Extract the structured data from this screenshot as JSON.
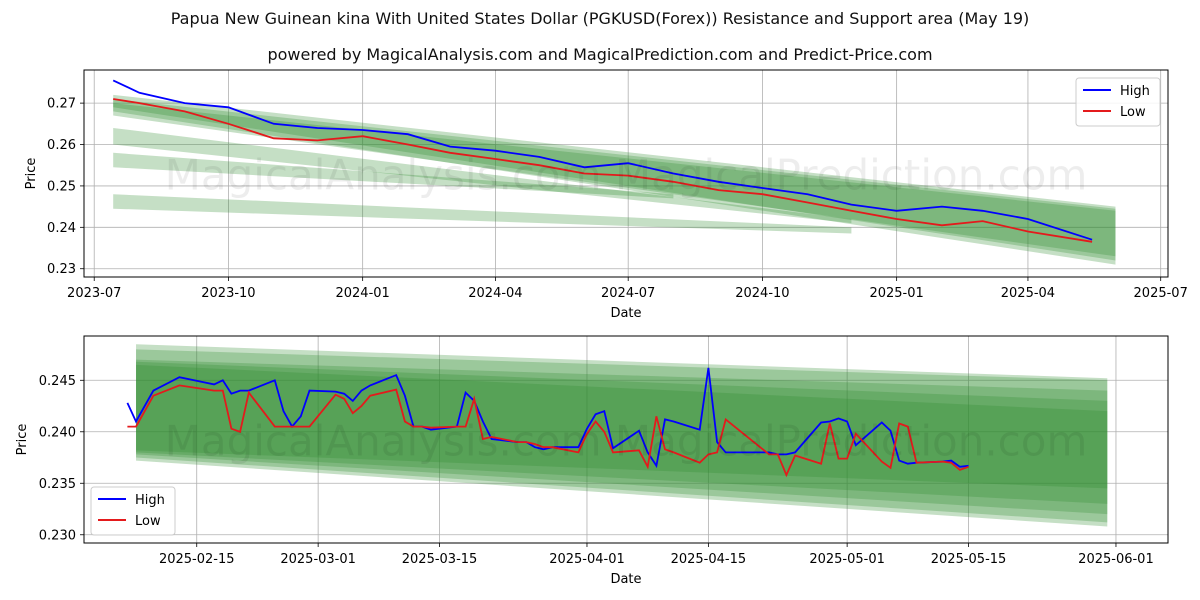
{
  "page": {
    "title": "Papua New Guinean kina With United States Dollar (PGKUSD(Forex)) Resistance and Support area (May 19)",
    "subtitle": "powered by MagicalAnalysis.com and MagicalPrediction.com and Predict-Price.com",
    "watermark": "MagicalAnalysis.com    MagicalPrediction.com"
  },
  "colors": {
    "high": "#0000ff",
    "low": "#e41a1c",
    "band": "#2e8b2e"
  },
  "chart_data": [
    {
      "type": "line",
      "xlabel": "Date",
      "ylabel": "Price",
      "ylim": [
        0.228,
        0.278
      ],
      "xlim": [
        "2023-06-24",
        "2025-07-06"
      ],
      "x_ticks": [
        "2023-07",
        "2023-10",
        "2024-01",
        "2024-04",
        "2024-07",
        "2024-10",
        "2025-01",
        "2025-04",
        "2025-07"
      ],
      "y_ticks": [
        "0.23",
        "0.24",
        "0.25",
        "0.26",
        "0.27"
      ],
      "grid": true,
      "legend": "top-right",
      "series": [
        {
          "name": "High",
          "x": [
            "2023-07-14",
            "2023-08-01",
            "2023-09-01",
            "2023-10-01",
            "2023-11-01",
            "2023-12-01",
            "2024-01-01",
            "2024-02-01",
            "2024-03-01",
            "2024-04-01",
            "2024-05-01",
            "2024-06-01",
            "2024-07-01",
            "2024-08-01",
            "2024-09-01",
            "2024-10-01",
            "2024-11-01",
            "2024-12-01",
            "2025-01-01",
            "2025-02-01",
            "2025-03-01",
            "2025-04-01",
            "2025-05-15"
          ],
          "values": [
            0.2755,
            0.2725,
            0.27,
            0.269,
            0.265,
            0.264,
            0.2635,
            0.2625,
            0.2595,
            0.2585,
            0.257,
            0.2545,
            0.2555,
            0.253,
            0.251,
            0.2495,
            0.248,
            0.2455,
            0.244,
            0.245,
            0.244,
            0.242,
            0.237
          ]
        },
        {
          "name": "Low",
          "x": [
            "2023-07-14",
            "2023-08-01",
            "2023-09-01",
            "2023-10-01",
            "2023-11-01",
            "2023-12-01",
            "2024-01-01",
            "2024-02-01",
            "2024-03-01",
            "2024-04-01",
            "2024-05-01",
            "2024-06-01",
            "2024-07-01",
            "2024-08-01",
            "2024-09-01",
            "2024-10-01",
            "2024-11-01",
            "2024-12-01",
            "2025-01-01",
            "2025-02-01",
            "2025-03-01",
            "2025-04-01",
            "2025-05-15"
          ],
          "values": [
            0.271,
            0.27,
            0.268,
            0.265,
            0.2615,
            0.261,
            0.262,
            0.26,
            0.258,
            0.2565,
            0.255,
            0.253,
            0.2525,
            0.251,
            0.249,
            0.248,
            0.246,
            0.244,
            0.242,
            0.2405,
            0.2415,
            0.239,
            0.2365
          ]
        }
      ],
      "bands": [
        {
          "x": [
            "2023-07-14",
            "2025-05-31"
          ],
          "upper": [
            0.272,
            0.245
          ],
          "lower": [
            0.268,
            0.231
          ]
        },
        {
          "x": [
            "2023-07-14",
            "2025-05-31"
          ],
          "upper": [
            0.271,
            0.2445
          ],
          "lower": [
            0.269,
            0.232
          ]
        },
        {
          "x": [
            "2023-07-14",
            "2025-05-31"
          ],
          "upper": [
            0.27,
            0.244
          ],
          "lower": [
            0.267,
            0.233
          ]
        },
        {
          "x": [
            "2023-07-14",
            "2024-12-01"
          ],
          "upper": [
            0.264,
            0.242
          ],
          "lower": [
            0.26,
            0.241
          ]
        },
        {
          "x": [
            "2023-07-14",
            "2024-08-01"
          ],
          "upper": [
            0.258,
            0.248
          ],
          "lower": [
            0.2545,
            0.247
          ]
        },
        {
          "x": [
            "2023-07-14",
            "2024-12-01"
          ],
          "upper": [
            0.248,
            0.24
          ],
          "lower": [
            0.2445,
            0.2385
          ]
        }
      ]
    },
    {
      "type": "line",
      "xlabel": "Date",
      "ylabel": "Price",
      "ylim": [
        0.2292,
        0.2493
      ],
      "xlim": [
        "2025-02-02",
        "2025-06-07"
      ],
      "x_ticks": [
        "2025-02-15",
        "2025-03-01",
        "2025-03-15",
        "2025-04-01",
        "2025-04-15",
        "2025-05-01",
        "2025-05-15",
        "2025-06-01"
      ],
      "y_ticks": [
        "0.230",
        "0.235",
        "0.240",
        "0.245"
      ],
      "grid": true,
      "legend": "bottom-left",
      "series": [
        {
          "name": "High",
          "x": [
            "2025-02-07",
            "2025-02-08",
            "2025-02-10",
            "2025-02-13",
            "2025-02-17",
            "2025-02-18",
            "2025-02-19",
            "2025-02-20",
            "2025-02-21",
            "2025-02-24",
            "2025-02-25",
            "2025-02-26",
            "2025-02-27",
            "2025-02-28",
            "2025-03-03",
            "2025-03-04",
            "2025-03-05",
            "2025-03-06",
            "2025-03-07",
            "2025-03-10",
            "2025-03-11",
            "2025-03-12",
            "2025-03-13",
            "2025-03-14",
            "2025-03-17",
            "2025-03-18",
            "2025-03-19",
            "2025-03-20",
            "2025-03-21",
            "2025-03-24",
            "2025-03-25",
            "2025-03-26",
            "2025-03-27",
            "2025-03-28",
            "2025-03-31",
            "2025-04-01",
            "2025-04-02",
            "2025-04-03",
            "2025-04-04",
            "2025-04-07",
            "2025-04-08",
            "2025-04-09",
            "2025-04-10",
            "2025-04-11",
            "2025-04-14",
            "2025-04-15",
            "2025-04-16",
            "2025-04-17",
            "2025-04-22",
            "2025-04-23",
            "2025-04-24",
            "2025-04-25",
            "2025-04-28",
            "2025-04-29",
            "2025-04-30",
            "2025-05-01",
            "2025-05-02",
            "2025-05-05",
            "2025-05-06",
            "2025-05-07",
            "2025-05-08",
            "2025-05-09",
            "2025-05-12",
            "2025-05-13",
            "2025-05-14",
            "2025-05-15"
          ],
          "values": [
            0.2428,
            0.241,
            0.244,
            0.2453,
            0.2446,
            0.245,
            0.2437,
            0.244,
            0.244,
            0.245,
            0.242,
            0.2405,
            0.2415,
            0.244,
            0.2439,
            0.2437,
            0.243,
            0.244,
            0.2445,
            0.2455,
            0.2435,
            0.2405,
            0.2405,
            0.2402,
            0.2405,
            0.2438,
            0.243,
            0.241,
            0.2393,
            0.239,
            0.239,
            0.2385,
            0.2383,
            0.2385,
            0.2385,
            0.2403,
            0.2417,
            0.242,
            0.2384,
            0.2401,
            0.238,
            0.2367,
            0.2412,
            0.241,
            0.2402,
            0.2462,
            0.239,
            0.238,
            0.238,
            0.2378,
            0.2378,
            0.238,
            0.2409,
            0.241,
            0.2413,
            0.241,
            0.2387,
            0.2409,
            0.2401,
            0.2372,
            0.2369,
            0.237,
            0.2371,
            0.2372,
            0.2366,
            0.2367
          ]
        },
        {
          "name": "Low",
          "x": [
            "2025-02-07",
            "2025-02-08",
            "2025-02-10",
            "2025-02-13",
            "2025-02-17",
            "2025-02-18",
            "2025-02-19",
            "2025-02-20",
            "2025-02-21",
            "2025-02-24",
            "2025-02-25",
            "2025-02-26",
            "2025-02-27",
            "2025-02-28",
            "2025-03-03",
            "2025-03-04",
            "2025-03-05",
            "2025-03-06",
            "2025-03-07",
            "2025-03-10",
            "2025-03-11",
            "2025-03-12",
            "2025-03-13",
            "2025-03-14",
            "2025-03-17",
            "2025-03-18",
            "2025-03-19",
            "2025-03-20",
            "2025-03-21",
            "2025-03-24",
            "2025-03-25",
            "2025-03-26",
            "2025-03-27",
            "2025-03-28",
            "2025-03-31",
            "2025-04-01",
            "2025-04-02",
            "2025-04-03",
            "2025-04-04",
            "2025-04-07",
            "2025-04-08",
            "2025-04-09",
            "2025-04-10",
            "2025-04-11",
            "2025-04-14",
            "2025-04-15",
            "2025-04-16",
            "2025-04-17",
            "2025-04-22",
            "2025-04-23",
            "2025-04-24",
            "2025-04-25",
            "2025-04-28",
            "2025-04-29",
            "2025-04-30",
            "2025-05-01",
            "2025-05-02",
            "2025-05-05",
            "2025-05-06",
            "2025-05-07",
            "2025-05-08",
            "2025-05-09",
            "2025-05-12",
            "2025-05-13",
            "2025-05-14",
            "2025-05-15"
          ],
          "values": [
            0.2405,
            0.2405,
            0.2435,
            0.2445,
            0.244,
            0.244,
            0.2403,
            0.24,
            0.2438,
            0.2405,
            0.2405,
            0.2405,
            0.2405,
            0.2405,
            0.2436,
            0.2432,
            0.2418,
            0.2425,
            0.2435,
            0.2441,
            0.241,
            0.2405,
            0.2405,
            0.2404,
            0.2405,
            0.2405,
            0.2432,
            0.2393,
            0.2395,
            0.239,
            0.239,
            0.2388,
            0.2385,
            0.2385,
            0.238,
            0.2398,
            0.241,
            0.24,
            0.238,
            0.2382,
            0.2366,
            0.2415,
            0.2383,
            0.238,
            0.237,
            0.2378,
            0.238,
            0.2412,
            0.2378,
            0.2378,
            0.2358,
            0.2377,
            0.2369,
            0.2408,
            0.2374,
            0.2374,
            0.2398,
            0.2371,
            0.2365,
            0.2408,
            0.2405,
            0.237,
            0.2371,
            0.237,
            0.2363,
            0.2366
          ]
        }
      ],
      "bands": [
        {
          "x": [
            "2025-02-08",
            "2025-05-31"
          ],
          "upper": [
            0.2485,
            0.2452
          ],
          "lower": [
            0.2372,
            0.2308
          ]
        },
        {
          "x": [
            "2025-02-08",
            "2025-05-31"
          ],
          "upper": [
            0.248,
            0.245
          ],
          "lower": [
            0.2375,
            0.2312
          ]
        },
        {
          "x": [
            "2025-02-08",
            "2025-05-31"
          ],
          "upper": [
            0.247,
            0.244
          ],
          "lower": [
            0.2378,
            0.232
          ]
        },
        {
          "x": [
            "2025-02-08",
            "2025-05-31"
          ],
          "upper": [
            0.2468,
            0.243
          ],
          "lower": [
            0.238,
            0.233
          ]
        },
        {
          "x": [
            "2025-02-08",
            "2025-05-31"
          ],
          "upper": [
            0.2465,
            0.242
          ],
          "lower": [
            0.2382,
            0.2345
          ]
        }
      ]
    }
  ]
}
